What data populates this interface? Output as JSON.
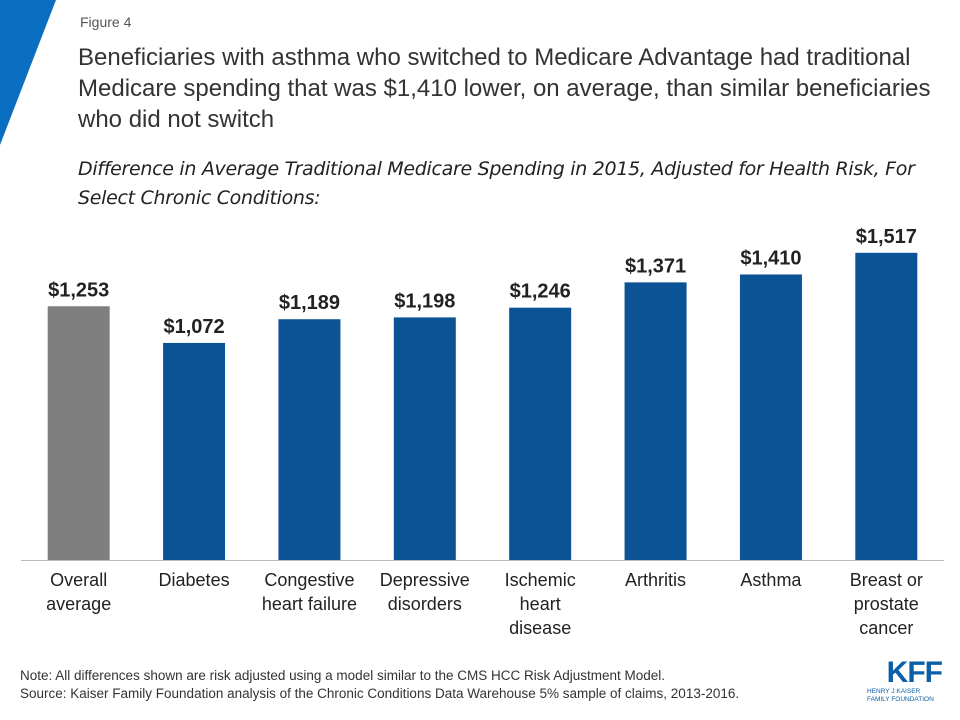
{
  "figure_label": "Figure 4",
  "chart_data": {
    "type": "bar",
    "title": "Beneficiaries with asthma who switched to Medicare Advantage had traditional Medicare spending that was $1,410 lower, on average, than similar beneficiaries who did not switch",
    "subtitle": "Difference in Average Traditional Medicare Spending in 2015, Adjusted for Health Risk, For Select Chronic Conditions:",
    "categories": [
      "Overall\naverage",
      "Diabetes",
      "Congestive\nheart failure",
      "Depressive\ndisorders",
      "Ischemic\nheart\ndisease",
      "Arthritis",
      "Asthma",
      "Breast or\nprostate\ncancer"
    ],
    "values": [
      1253,
      1072,
      1189,
      1198,
      1246,
      1371,
      1410,
      1517
    ],
    "value_labels": [
      "$1,253",
      "$1,072",
      "$1,189",
      "$1,198",
      "$1,246",
      "$1,371",
      "$1,410",
      "$1,517"
    ],
    "colors": [
      "#7f7f7f",
      "#0b5394",
      "#0b5394",
      "#0b5394",
      "#0b5394",
      "#0b5394",
      "#0b5394",
      "#0b5394"
    ],
    "ylim": [
      0,
      1600
    ]
  },
  "notes": [
    "Note: All differences shown are risk adjusted using a model similar to the CMS HCC Risk Adjustment Model.",
    "Source: Kaiser Family Foundation analysis of the Chronic Conditions Data Warehouse 5% sample of claims, 2013-2016."
  ],
  "logo": {
    "name": "KFF",
    "subtitle": "HENRY J KAISER FAMILY FOUNDATION"
  }
}
